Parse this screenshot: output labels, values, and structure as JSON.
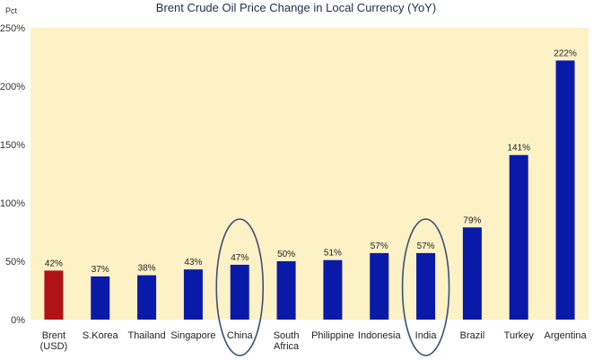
{
  "chart_data": {
    "type": "bar",
    "title": "Brent Crude Oil Price Change in Local Currency (YoY)",
    "ylabel": "Pct",
    "xlabel": "",
    "ylim": [
      0,
      250
    ],
    "yticks": [
      "0%",
      "50%",
      "100%",
      "150%",
      "200%",
      "250%"
    ],
    "grid": false,
    "categories": [
      [
        "Brent",
        "(USD)"
      ],
      [
        "S.Korea"
      ],
      [
        "Thailand"
      ],
      [
        "Singapore"
      ],
      [
        "China"
      ],
      [
        "South",
        "Africa"
      ],
      [
        "Philippine"
      ],
      [
        "Indonesia"
      ],
      [
        "India"
      ],
      [
        "Brazil"
      ],
      [
        "Turkey"
      ],
      [
        "Argentina"
      ]
    ],
    "values": [
      42,
      37,
      38,
      43,
      47,
      50,
      51,
      57,
      57,
      79,
      141,
      222
    ],
    "data_labels": [
      "42%",
      "37%",
      "38%",
      "43%",
      "47%",
      "50%",
      "51%",
      "57%",
      "57%",
      "79%",
      "141%",
      "222%"
    ],
    "highlighted_categories": [
      "China",
      "India"
    ],
    "colors": {
      "plot_background": "#fdf1c6",
      "default_bar": "#0a1aa8",
      "first_bar": "#b01313",
      "highlight_ellipse": "#3a5078"
    }
  }
}
